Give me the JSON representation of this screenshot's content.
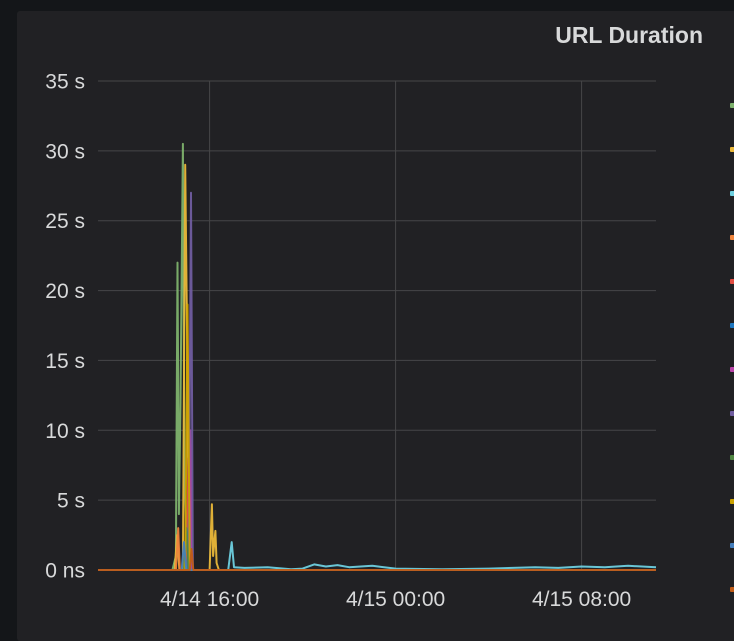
{
  "panel": {
    "title": "URL Duration"
  },
  "chart_data": {
    "type": "line",
    "title": "URL Duration",
    "xlabel": "",
    "ylabel": "",
    "grid": true,
    "legend": "right",
    "x_ticks": [
      "4/14 16:00",
      "4/15 00:00",
      "4/15 08:00"
    ],
    "x_tick_hours": [
      16,
      24,
      32
    ],
    "xlim_hours": [
      11.2,
      35.2
    ],
    "y_ticks": [
      {
        "label": "0 ns",
        "value": 0
      },
      {
        "label": "5 s",
        "value": 5
      },
      {
        "label": "10 s",
        "value": 10
      },
      {
        "label": "15 s",
        "value": 15
      },
      {
        "label": "20 s",
        "value": 20
      },
      {
        "label": "25 s",
        "value": 25
      },
      {
        "label": "30 s",
        "value": 30
      },
      {
        "label": "35 s",
        "value": 35
      }
    ],
    "ylim": [
      0,
      35
    ],
    "y_unit": "s",
    "series": [
      {
        "color": "#7eb26d",
        "points": [
          [
            11.2,
            0
          ],
          [
            14.4,
            0
          ],
          [
            14.55,
            1
          ],
          [
            14.62,
            22
          ],
          [
            14.68,
            4
          ],
          [
            14.75,
            12
          ],
          [
            14.85,
            30.5
          ],
          [
            14.92,
            6
          ],
          [
            15.0,
            3
          ],
          [
            15.1,
            0
          ],
          [
            20,
            0
          ]
        ]
      },
      {
        "color": "#eab839",
        "points": [
          [
            11.2,
            0
          ],
          [
            14.5,
            0
          ],
          [
            14.6,
            2.5
          ],
          [
            14.7,
            0
          ],
          [
            14.85,
            0
          ],
          [
            14.95,
            29
          ],
          [
            15.05,
            14
          ],
          [
            15.1,
            2
          ],
          [
            15.2,
            0
          ],
          [
            16.0,
            0
          ],
          [
            16.1,
            4.7
          ],
          [
            16.15,
            1
          ],
          [
            16.25,
            2.8
          ],
          [
            16.3,
            0.5
          ],
          [
            16.4,
            0
          ],
          [
            35.2,
            0
          ]
        ]
      },
      {
        "color": "#6ed0e0",
        "points": [
          [
            11.2,
            0
          ],
          [
            16.8,
            0
          ],
          [
            16.95,
            2
          ],
          [
            17.05,
            0.2
          ],
          [
            17.5,
            0.15
          ],
          [
            18.5,
            0.2
          ],
          [
            19.5,
            0.05
          ],
          [
            20.0,
            0.1
          ],
          [
            20.5,
            0.4
          ],
          [
            21.0,
            0.25
          ],
          [
            21.5,
            0.35
          ],
          [
            22.0,
            0.2
          ],
          [
            23.0,
            0.3
          ],
          [
            24.0,
            0.1
          ],
          [
            26.0,
            0.05
          ],
          [
            28.0,
            0.1
          ],
          [
            30.0,
            0.2
          ],
          [
            31.0,
            0.15
          ],
          [
            32.0,
            0.25
          ],
          [
            33.0,
            0.2
          ],
          [
            34.0,
            0.3
          ],
          [
            35.2,
            0.2
          ]
        ]
      },
      {
        "color": "#ef843c",
        "points": [
          [
            11.2,
            0
          ],
          [
            14.55,
            0
          ],
          [
            14.65,
            3
          ],
          [
            14.72,
            0
          ],
          [
            35.2,
            0
          ]
        ]
      },
      {
        "color": "#e24d42",
        "points": [
          [
            11.2,
            0
          ],
          [
            15.0,
            0
          ],
          [
            15.1,
            8
          ],
          [
            15.2,
            0
          ],
          [
            35.2,
            0
          ]
        ]
      },
      {
        "color": "#1f78c1",
        "points": [
          [
            11.2,
            0
          ],
          [
            15.05,
            0
          ],
          [
            15.12,
            4
          ],
          [
            15.2,
            0
          ],
          [
            35.2,
            0
          ]
        ]
      },
      {
        "color": "#ba43a9",
        "points": [
          [
            11.2,
            0
          ],
          [
            15.1,
            0
          ],
          [
            15.17,
            10
          ],
          [
            15.25,
            0
          ],
          [
            35.2,
            0
          ]
        ]
      },
      {
        "color": "#705da0",
        "points": [
          [
            11.2,
            0
          ],
          [
            15.1,
            0
          ],
          [
            15.2,
            27
          ],
          [
            15.28,
            0
          ],
          [
            35.2,
            0
          ]
        ]
      },
      {
        "color": "#508642",
        "points": [
          [
            11.2,
            0
          ],
          [
            14.9,
            0
          ],
          [
            15.0,
            3
          ],
          [
            15.1,
            0
          ],
          [
            35.2,
            0
          ]
        ]
      },
      {
        "color": "#cca300",
        "points": [
          [
            11.2,
            0
          ],
          [
            14.95,
            0
          ],
          [
            15.05,
            19
          ],
          [
            15.15,
            0
          ],
          [
            35.2,
            0
          ]
        ]
      },
      {
        "color": "#447ebc",
        "points": [
          [
            11.2,
            0
          ],
          [
            14.8,
            0
          ],
          [
            14.9,
            2
          ],
          [
            15.0,
            0
          ],
          [
            35.2,
            0
          ]
        ]
      },
      {
        "color": "#c15c17",
        "points": [
          [
            11.2,
            0
          ],
          [
            15.15,
            0
          ],
          [
            15.22,
            1.5
          ],
          [
            15.3,
            0
          ],
          [
            35.2,
            0
          ]
        ]
      }
    ]
  }
}
